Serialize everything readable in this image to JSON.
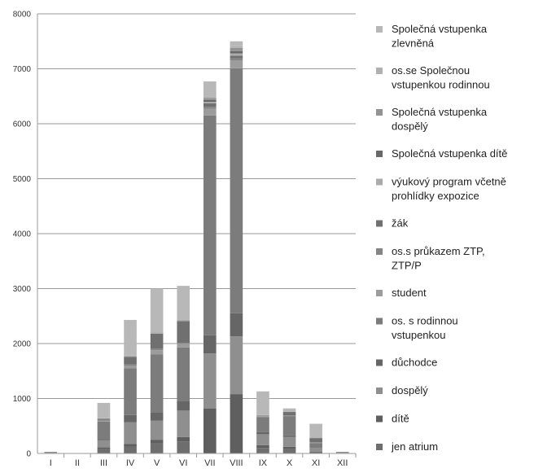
{
  "chart_data": {
    "type": "bar",
    "stacked": true,
    "title": "",
    "xlabel": "",
    "ylabel": "",
    "ylim": [
      0,
      8000
    ],
    "yticks": [
      0,
      1000,
      2000,
      3000,
      4000,
      5000,
      6000,
      7000,
      8000
    ],
    "grid": "horizontal",
    "legend_position": "right",
    "categories": [
      "I",
      "II",
      "III",
      "IV",
      "V",
      "VI",
      "VII",
      "VIII",
      "IX",
      "X",
      "XI",
      "XII"
    ],
    "series": [
      {
        "name": "jen atrium",
        "color": "#6e6e6e",
        "values": [
          5,
          0,
          80,
          120,
          180,
          220,
          0,
          0,
          100,
          80,
          20,
          5
        ]
      },
      {
        "name": "dítě",
        "color": "#5f5f5f",
        "values": [
          5,
          0,
          30,
          50,
          70,
          80,
          820,
          1080,
          50,
          40,
          10,
          5
        ]
      },
      {
        "name": "dospělý",
        "color": "#8f8f8f",
        "values": [
          10,
          0,
          130,
          400,
          350,
          480,
          1000,
          1050,
          200,
          180,
          70,
          10
        ]
      },
      {
        "name": "důchodce",
        "color": "#666666",
        "values": [
          0,
          0,
          20,
          130,
          150,
          180,
          330,
          420,
          40,
          30,
          10,
          0
        ]
      },
      {
        "name": "os. s rodinnou vstupenkou",
        "color": "#7c7c7c",
        "values": [
          10,
          0,
          320,
          850,
          1050,
          970,
          4000,
          4460,
          270,
          350,
          80,
          10
        ]
      },
      {
        "name": "student",
        "color": "#9c9c9c",
        "values": [
          0,
          0,
          20,
          50,
          80,
          60,
          120,
          140,
          20,
          10,
          10,
          0
        ]
      },
      {
        "name": "os.s průkazem ZTP, ZTP/P",
        "color": "#858585",
        "values": [
          0,
          0,
          10,
          20,
          30,
          20,
          40,
          40,
          10,
          5,
          5,
          0
        ]
      },
      {
        "name": "žák",
        "color": "#707070",
        "values": [
          0,
          0,
          20,
          140,
          270,
          400,
          60,
          50,
          0,
          60,
          75,
          0
        ]
      },
      {
        "name": "výukový program včetně prohlídky expozice",
        "color": "#ababab",
        "values": [
          0,
          0,
          10,
          20,
          20,
          20,
          30,
          40,
          10,
          10,
          10,
          0
        ]
      },
      {
        "name": "Společná vstupenka dítě",
        "color": "#686868",
        "values": [
          0,
          0,
          0,
          0,
          0,
          0,
          30,
          40,
          0,
          0,
          0,
          0
        ]
      },
      {
        "name": "Společná vstupenka dospělý",
        "color": "#929292",
        "values": [
          0,
          0,
          0,
          0,
          0,
          0,
          40,
          60,
          0,
          0,
          0,
          0
        ]
      },
      {
        "name": "os.se Společnou vstupenkou rodinnou",
        "color": "#b0b0b0",
        "values": [
          0,
          0,
          0,
          0,
          0,
          0,
          20,
          30,
          0,
          0,
          0,
          0
        ]
      },
      {
        "name": "Společná vstupenka zlevněná",
        "color": "#b8b8b8",
        "values": [
          0,
          0,
          280,
          650,
          800,
          620,
          280,
          90,
          430,
          55,
          250,
          0
        ]
      }
    ],
    "legend_labels": [
      [
        "Společná vstupenka",
        "zlevněná"
      ],
      [
        "os.se Společnou",
        "vstupenkou rodinnou"
      ],
      [
        "Společná vstupenka",
        "dospělý"
      ],
      [
        "Společná vstupenka dítě"
      ],
      [
        "výukový program včetně",
        "prohlídky expozice"
      ],
      [
        "žák"
      ],
      [
        "os.s průkazem ZTP,",
        "ZTP/P"
      ],
      [
        "student"
      ],
      [
        "os. s rodinnou",
        "vstupenkou"
      ],
      [
        "důchodce"
      ],
      [
        "dospělý"
      ],
      [
        "dítě"
      ],
      [
        "jen atrium"
      ]
    ]
  }
}
